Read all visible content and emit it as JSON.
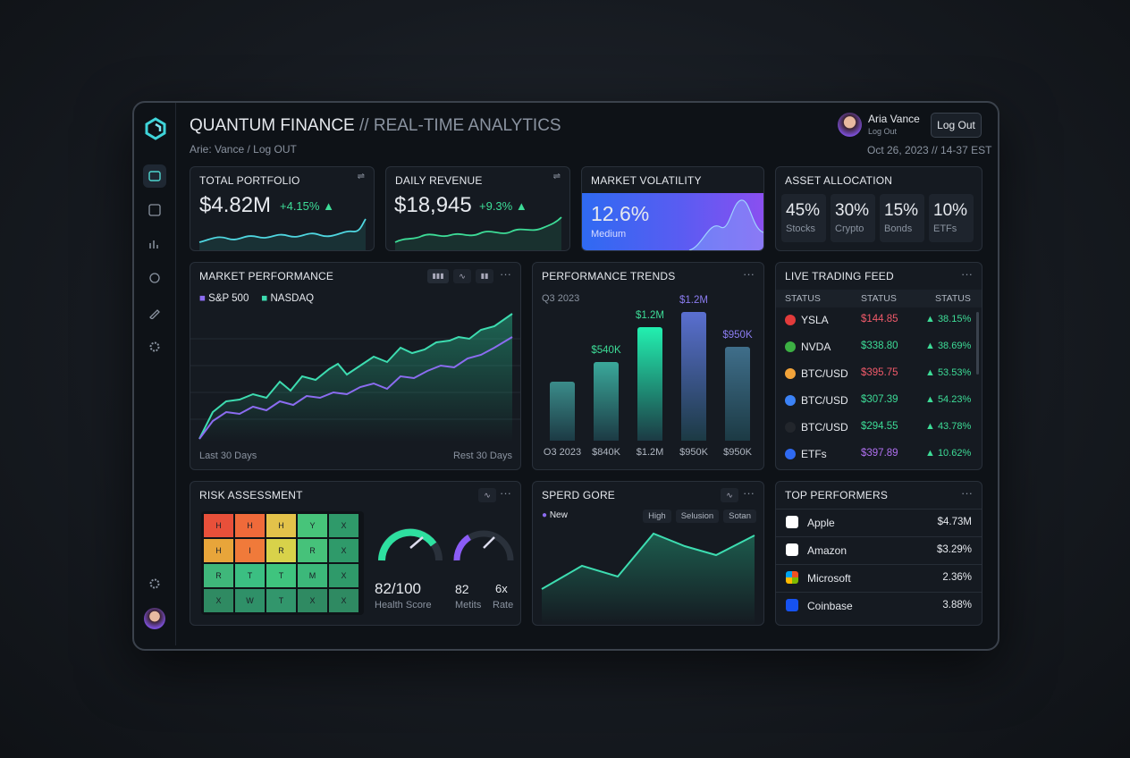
{
  "header": {
    "title": "QUANTUM FINANCE",
    "subtitle": "// REAL-TIME ANALYTICS",
    "breadcrumb": "Arie: Vance / Log OUT",
    "user_name": "Aria Vance",
    "user_sub": "Log Out",
    "logout": "Log Out",
    "datetime": "Oct 26, 2023 // 14-37 EST"
  },
  "kpis": [
    {
      "title": "TOTAL PORTFOLIO",
      "value": "$4.82M",
      "change": "+4.15%"
    },
    {
      "title": "DAILY REVENUE",
      "value": "$18,945",
      "change": "+9.3%"
    }
  ],
  "volatility": {
    "title": "MARKET VOLATILITY",
    "value": "12.6%",
    "label": "Medium"
  },
  "allocation": {
    "title": "ASSET ALLOCATION",
    "items": [
      {
        "value": "45%",
        "label": "Stocks"
      },
      {
        "value": "30%",
        "label": "Crypto"
      },
      {
        "value": "15%",
        "label": "Bonds"
      },
      {
        "value": "10%",
        "label": "ETFs"
      }
    ]
  },
  "market_performance": {
    "title": "MARKET PERFORMANCE",
    "legend": [
      "S&P 500",
      "NASDAQ"
    ],
    "x_start": "Last 30 Days",
    "x_end": "Rest 30 Days"
  },
  "performance_trends": {
    "title": "PERFORMANCE TRENDS",
    "period": "Q3 2023",
    "bars": [
      {
        "category": "O3 2023",
        "label": null
      },
      {
        "category": "$840K",
        "label": "$540K"
      },
      {
        "category": "$1.2M",
        "label": "$1.2M"
      },
      {
        "category": "$950K",
        "label": "$1.2M"
      },
      {
        "category": "$950K",
        "label": "$950K"
      }
    ]
  },
  "trading_feed": {
    "title": "LIVE TRADING FEED",
    "columns": [
      "STATUS",
      "STATUS",
      "STATUS"
    ],
    "rows": [
      {
        "symbol": "YSLA",
        "price": "$144.85",
        "change": "▲ 38.15%"
      },
      {
        "symbol": "NVDA",
        "price": "$338.80",
        "change": "▲ 38.69%"
      },
      {
        "symbol": "BTC/USD",
        "price": "$395.75",
        "change": "▲ 53.53%"
      },
      {
        "symbol": "BTC/USD",
        "price": "$307.39",
        "change": "▲ 54.23%"
      },
      {
        "symbol": "BTC/USD",
        "price": "$294.55",
        "change": "▲ 43.78%"
      },
      {
        "symbol": "ETFs",
        "price": "$397.89",
        "change": "▲ 10.62%"
      }
    ]
  },
  "risk": {
    "title": "RISK ASSESSMENT",
    "grid": [
      [
        "H",
        "H",
        "H",
        "Y",
        "X"
      ],
      [
        "H",
        "I",
        "R",
        "R",
        "X"
      ],
      [
        "R",
        "T",
        "T",
        "M",
        "X"
      ],
      [
        "X",
        "W",
        "T",
        "X",
        "X"
      ]
    ],
    "score": "82/100",
    "score_label": "Health Score",
    "metric": "82",
    "metric_label": "Metits",
    "rate": "6x",
    "rate_label": "Rate"
  },
  "speed": {
    "title": "SPERD GORE",
    "legend": "New",
    "buttons": [
      "High",
      "Selusion",
      "Sotan"
    ]
  },
  "top_performers": {
    "title": "TOP PERFORMERS",
    "rows": [
      {
        "name": "Apple",
        "value": "$4.73M"
      },
      {
        "name": "Amazon",
        "value": "$3.29%"
      },
      {
        "name": "Microsoft",
        "value": "2.36%"
      },
      {
        "name": "Coinbase",
        "value": "3.88%"
      }
    ]
  }
}
